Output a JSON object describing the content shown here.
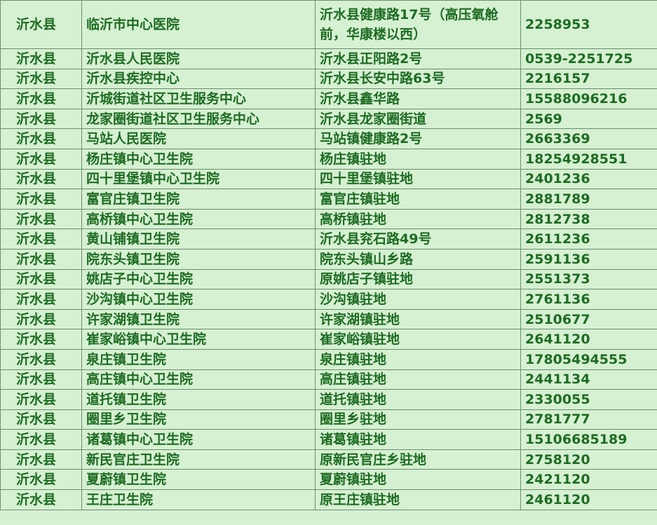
{
  "table": {
    "rows": [
      [
        "沂水县",
        "临沂市中心医院",
        "沂水县健康路17号（高压氧舱前，华康楼以西）",
        "2258953"
      ],
      [
        "沂水县",
        "沂水县人民医院",
        "沂水县正阳路2号",
        "0539-2251725"
      ],
      [
        "沂水县",
        "沂水县疾控中心",
        "沂水县长安中路63号",
        "2216157"
      ],
      [
        "沂水县",
        "沂城街道社区卫生服务中心",
        "沂水县鑫华路",
        "15588096216"
      ],
      [
        "沂水县",
        "龙家圈街道社区卫生服务中心",
        "沂水县龙家圈街道",
        "2569"
      ],
      [
        "沂水县",
        "马站人民医院",
        "马站镇健康路2号",
        "2663369"
      ],
      [
        "沂水县",
        "杨庄镇中心卫生院",
        "杨庄镇驻地",
        "18254928551"
      ],
      [
        "沂水县",
        "四十里堡镇中心卫生院",
        "四十里堡镇驻地",
        "2401236"
      ],
      [
        "沂水县",
        "富官庄镇卫生院",
        "富官庄镇驻地",
        "2881789"
      ],
      [
        "沂水县",
        "高桥镇中心卫生院",
        "高桥镇驻地",
        "2812738"
      ],
      [
        "沂水县",
        "黄山铺镇卫生院",
        "沂水县兖石路49号",
        "2611236"
      ],
      [
        "沂水县",
        "院东头镇卫生院",
        "院东头镇山乡路",
        "2591136"
      ],
      [
        "沂水县",
        "姚店子中心卫生院",
        "原姚店子镇驻地",
        "2551373"
      ],
      [
        "沂水县",
        "沙沟镇中心卫生院",
        "沙沟镇驻地",
        "2761136"
      ],
      [
        "沂水县",
        "许家湖镇卫生院",
        "许家湖镇驻地",
        "2510677"
      ],
      [
        "沂水县",
        "崔家峪镇中心卫生院",
        "崔家峪镇驻地",
        "2641120"
      ],
      [
        "沂水县",
        "泉庄镇卫生院",
        "泉庄镇驻地",
        "17805494555"
      ],
      [
        "沂水县",
        "高庄镇中心卫生院",
        "高庄镇驻地",
        "2441134"
      ],
      [
        "沂水县",
        "道托镇卫生院",
        "道托镇驻地",
        "2330055"
      ],
      [
        "沂水县",
        "圈里乡卫生院",
        "圈里乡驻地",
        "2781777"
      ],
      [
        "沂水县",
        "诸葛镇中心卫生院",
        "诸葛镇驻地",
        "15106685189"
      ],
      [
        "沂水县",
        "新民官庄卫生院",
        "原新民官庄乡驻地",
        "2758120"
      ],
      [
        "沂水县",
        "夏蔚镇卫生院",
        "夏蔚镇驻地",
        "2421120"
      ],
      [
        "沂水县",
        "王庄卫生院",
        "原王庄镇驻地",
        "2461120"
      ]
    ]
  }
}
